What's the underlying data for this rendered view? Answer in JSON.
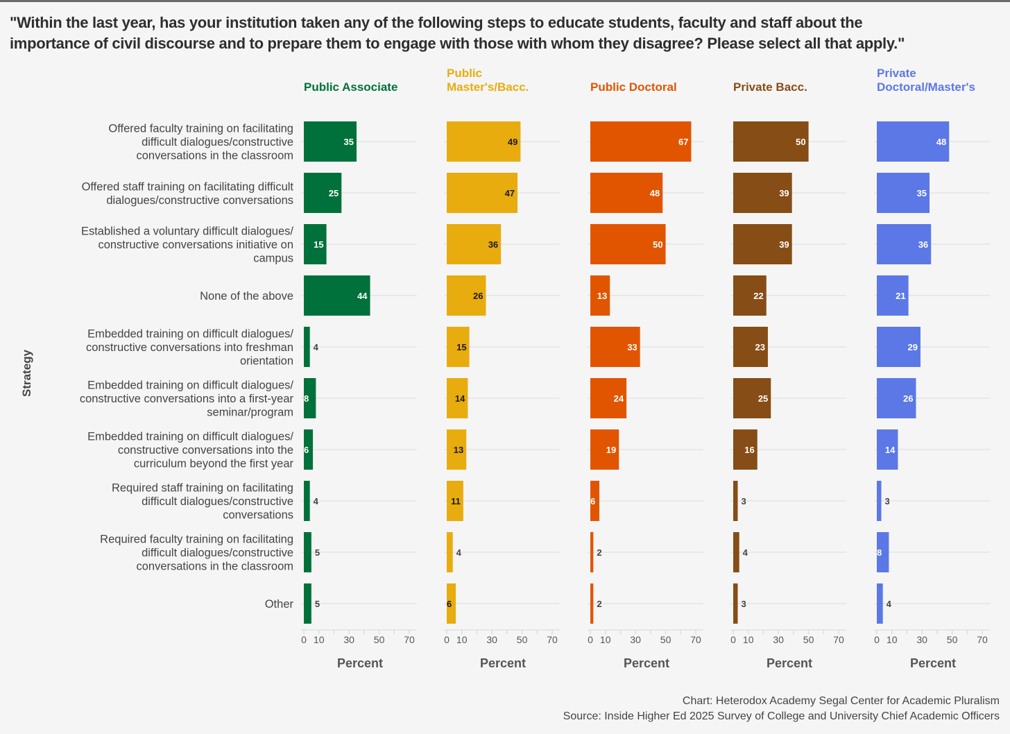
{
  "title_line1": "\"Within the last year, has your institution taken any of the following steps to educate students, faculty and staff about the",
  "title_line2": "importance of civil discourse and to prepare them to engage with those with whom they disagree? Please select all that apply.\"",
  "caption_chart": "Chart: Heterodox Academy Segal Center for Academic Pluralism",
  "caption_source": "Source: Inside Higher Ed 2025 Survey of College and University Chief Academic Officers",
  "chart_data": {
    "type": "bar",
    "orientation": "horizontal",
    "ylabel": "Strategy",
    "xlabel": "Percent",
    "xlim": [
      0,
      75
    ],
    "xticks": [
      0,
      10,
      20,
      30,
      40,
      50,
      60,
      70
    ],
    "xtick_labels": [
      "0",
      "10",
      "",
      "30",
      "",
      "50",
      "",
      "70"
    ],
    "categories": [
      [
        "Offered faculty training on facilitating",
        "difficult dialogues/constructive",
        "conversations in the classroom"
      ],
      [
        "Offered staff training on facilitating difficult",
        "dialogues/constructive conversations"
      ],
      [
        "Established a voluntary difficult dialogues/",
        "constructive conversations initiative on",
        "campus"
      ],
      [
        "None of the above"
      ],
      [
        "Embedded training on difficult dialogues/",
        "constructive conversations into freshman",
        "orientation"
      ],
      [
        "Embedded training on difficult dialogues/",
        "constructive conversations into a first-year",
        "seminar/program"
      ],
      [
        "Embedded training on difficult dialogues/",
        "constructive conversations into the",
        "curriculum beyond the first year"
      ],
      [
        "Required staff training on facilitating",
        "difficult dialogues/constructive",
        "conversations"
      ],
      [
        "Required faculty training on facilitating",
        "difficult dialogues/constructive",
        "conversations in the classroom"
      ],
      [
        "Other"
      ]
    ],
    "series": [
      {
        "name": [
          "Public Associate"
        ],
        "color": "#00713a",
        "label_color": "#ffffff",
        "values": [
          35,
          25,
          15,
          44,
          4,
          8,
          6,
          4,
          5,
          5
        ]
      },
      {
        "name": [
          "Public",
          "Master's/Bacc."
        ],
        "color": "#e8ac0e",
        "label_color": "#1a1a1a",
        "values": [
          49,
          47,
          36,
          26,
          15,
          14,
          13,
          11,
          4,
          6
        ]
      },
      {
        "name": [
          "Public Doctoral"
        ],
        "color": "#e15500",
        "label_color": "#ffffff",
        "values": [
          67,
          48,
          50,
          13,
          33,
          24,
          19,
          6,
          2,
          2
        ]
      },
      {
        "name": [
          "Private Bacc."
        ],
        "color": "#864d16",
        "label_color": "#ffffff",
        "values": [
          50,
          39,
          39,
          22,
          23,
          25,
          16,
          3,
          4,
          3
        ]
      },
      {
        "name": [
          "Private",
          "Doctoral/Master's"
        ],
        "color": "#5b78e6",
        "label_color": "#ffffff",
        "values": [
          48,
          35,
          36,
          21,
          29,
          26,
          14,
          3,
          8,
          4
        ]
      }
    ]
  }
}
